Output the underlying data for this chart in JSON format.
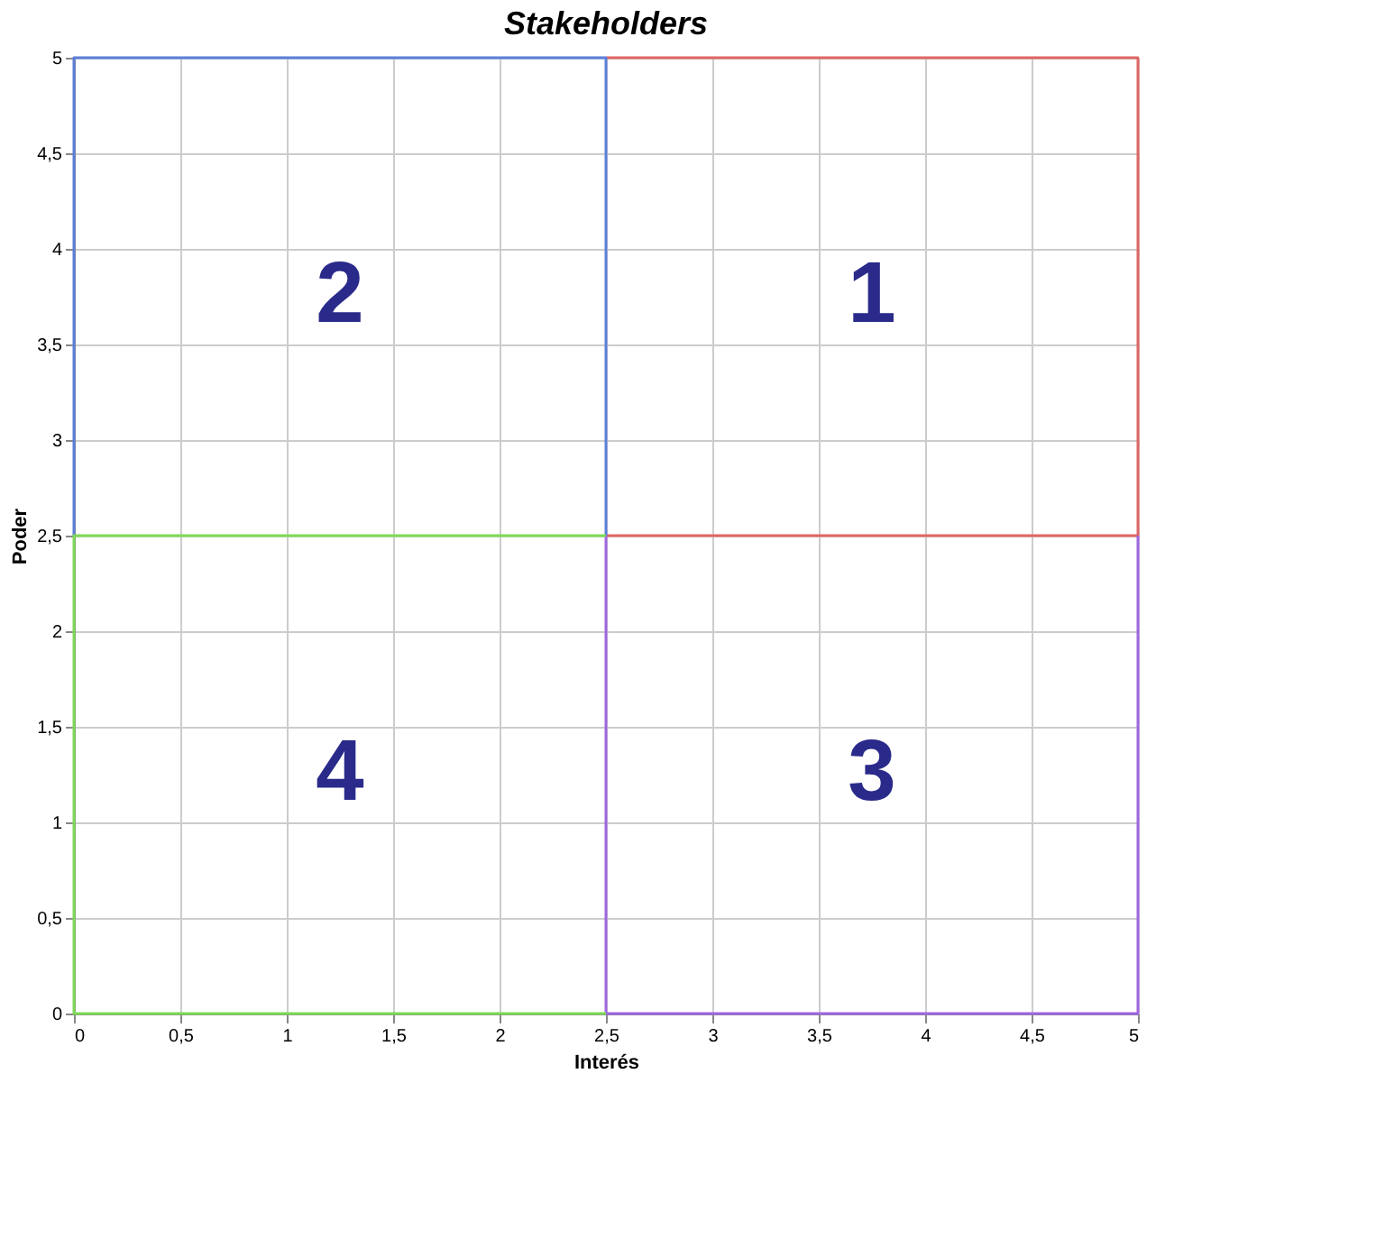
{
  "chart_data": {
    "type": "line",
    "title": "Stakeholders",
    "xlabel": "Interés",
    "ylabel": "Poder",
    "series": [
      {
        "color": "#e06666",
        "x": [
          2.5,
          5,
          5,
          2.5
        ],
        "values": [
          5,
          5,
          2.5,
          2.5
        ]
      },
      {
        "color": "#5b7fd9",
        "x": [
          0,
          0,
          2.5,
          2.5
        ],
        "values": [
          2.5,
          5,
          5,
          2.5
        ]
      },
      {
        "color": "#a066e0",
        "x": [
          2.5,
          2.5,
          5,
          5
        ],
        "values": [
          2.5,
          0,
          0,
          2.5
        ]
      },
      {
        "color": "#7ed957",
        "x": [
          2.5,
          0,
          0,
          2.5
        ],
        "values": [
          2.5,
          2.5,
          0,
          0
        ]
      }
    ],
    "annotations": [
      "1",
      "2",
      "3",
      "4"
    ],
    "xlim": [
      0,
      5
    ],
    "ylim": [
      0,
      5
    ],
    "xticks": [
      0,
      {
        "value": 0.5,
        "label": "0,5"
      },
      1,
      {
        "value": 1.5,
        "label": "1,5"
      },
      2,
      {
        "value": 2.5,
        "label": "2,5"
      },
      3,
      {
        "value": 3.5,
        "label": "3,5"
      },
      4,
      {
        "value": 4.5,
        "label": "4,5"
      },
      5
    ],
    "yticks": [
      0,
      {
        "value": 0.5,
        "label": "0,5"
      },
      1,
      {
        "value": 1.5,
        "label": "1,5"
      },
      2,
      {
        "value": 2.5,
        "label": "2,5"
      },
      3,
      {
        "value": 3.5,
        "label": "3,5"
      },
      4,
      {
        "value": 4.5,
        "label": "4,5"
      },
      5
    ],
    "grid": true,
    "marker": "none",
    "line_style": "solid"
  }
}
